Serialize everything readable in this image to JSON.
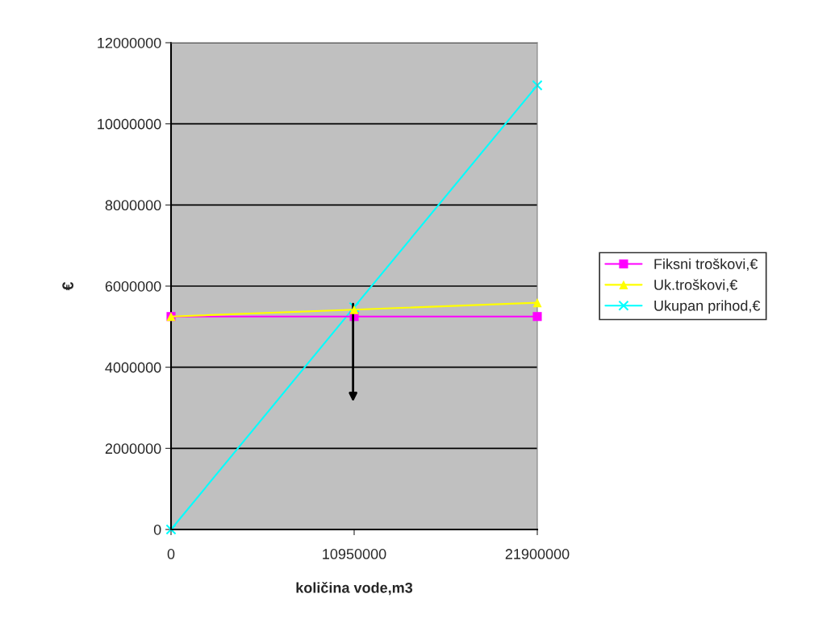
{
  "chart_data": {
    "type": "line",
    "xlabel": "količina vode,m3",
    "ylabel": "€",
    "categories": [
      "0",
      "10950000",
      "21900000"
    ],
    "series": [
      {
        "name": "Fiksni troškovi,€",
        "color": "#ff00ff",
        "marker": "square",
        "values": [
          5250000,
          5250000,
          5250000
        ]
      },
      {
        "name": "Uk.troškovi,€",
        "color": "#ffff00",
        "marker": "triangle",
        "values": [
          5250000,
          5420000,
          5590000
        ]
      },
      {
        "name": "Ukupan prihod,€",
        "color": "#00ffff",
        "marker": "cross",
        "values": [
          0,
          5480000,
          10950000
        ]
      }
    ],
    "ylim": [
      0,
      12000000
    ],
    "yticks": [
      0,
      2000000,
      4000000,
      6000000,
      8000000,
      10000000,
      12000000
    ],
    "grid": "y",
    "legend": "right"
  }
}
